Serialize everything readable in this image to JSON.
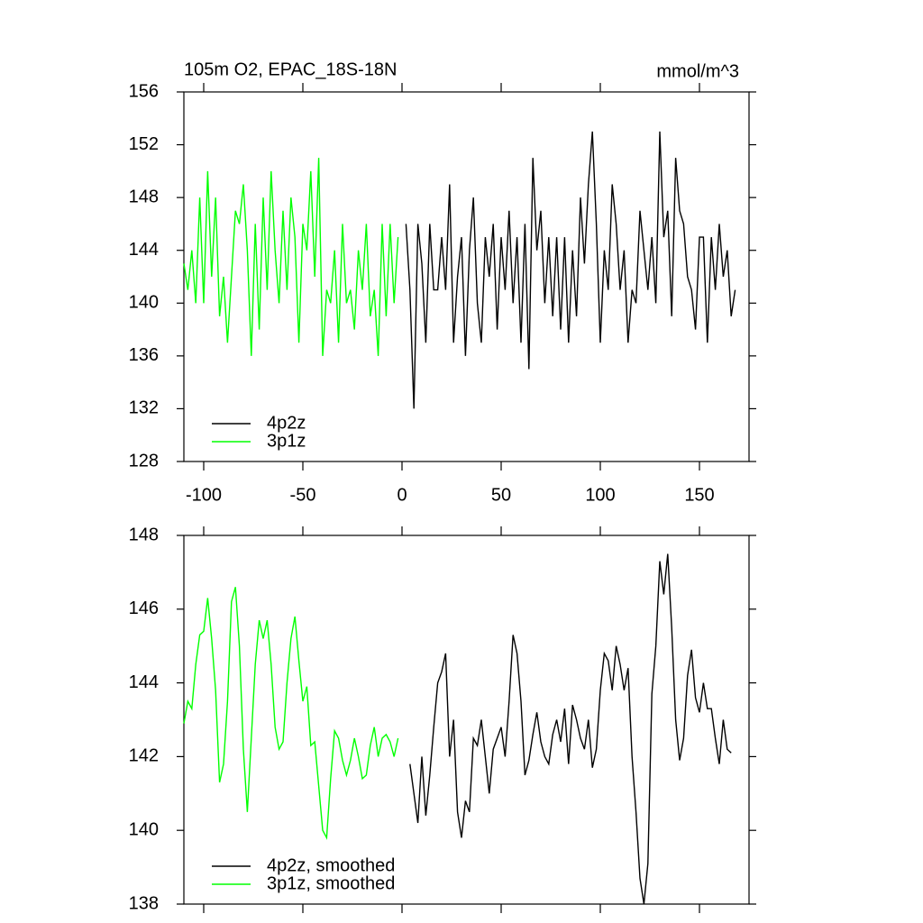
{
  "chart_data": [
    {
      "type": "line",
      "title": "105m O2, EPAC_18S-18N",
      "units": "mmol/m^3",
      "xlim": [
        -110,
        175
      ],
      "xticks": [
        -100,
        -50,
        0,
        50,
        100,
        150
      ],
      "ylim": [
        128,
        156
      ],
      "yticks": [
        128,
        132,
        136,
        140,
        144,
        148,
        152,
        156
      ],
      "legend": "lower left",
      "series": [
        {
          "name": "4p2z",
          "color": "#000000",
          "x": [
            2,
            4,
            6,
            8,
            10,
            12,
            14,
            16,
            18,
            20,
            22,
            24,
            26,
            28,
            30,
            32,
            34,
            36,
            38,
            40,
            42,
            44,
            46,
            48,
            50,
            52,
            54,
            56,
            58,
            60,
            62,
            64,
            66,
            68,
            70,
            72,
            74,
            76,
            78,
            80,
            82,
            84,
            86,
            88,
            90,
            92,
            94,
            96,
            98,
            100,
            102,
            104,
            106,
            108,
            110,
            112,
            114,
            116,
            118,
            120,
            122,
            124,
            126,
            128,
            130,
            132,
            134,
            136,
            138,
            140,
            142,
            144,
            146,
            148,
            150,
            152,
            154,
            156,
            158,
            160,
            162,
            164,
            166,
            168
          ],
          "values": [
            146,
            141,
            132,
            146,
            143,
            137,
            146,
            141,
            141,
            145,
            141,
            149,
            137,
            142,
            145,
            136,
            144,
            148,
            140,
            137,
            145,
            142,
            146,
            138,
            145,
            141,
            147,
            140,
            145,
            137,
            146,
            135,
            151,
            144,
            147,
            140,
            145,
            139,
            145,
            138,
            145,
            137,
            144,
            139,
            148,
            143,
            149,
            153,
            146,
            137,
            144,
            141,
            149,
            146,
            141,
            144,
            137,
            141,
            140,
            147,
            144,
            141,
            145,
            140,
            153,
            145,
            147,
            139,
            151,
            147,
            146,
            142,
            141,
            138,
            145,
            145,
            137,
            145,
            141,
            146,
            142,
            144,
            139,
            141
          ]
        },
        {
          "name": "3p1z",
          "color": "#00ff00",
          "x": [
            -110,
            -108,
            -106,
            -104,
            -102,
            -100,
            -98,
            -96,
            -94,
            -92,
            -90,
            -88,
            -86,
            -84,
            -82,
            -80,
            -78,
            -76,
            -74,
            -72,
            -70,
            -68,
            -66,
            -64,
            -62,
            -60,
            -58,
            -56,
            -54,
            -52,
            -50,
            -48,
            -46,
            -44,
            -42,
            -40,
            -38,
            -36,
            -34,
            -32,
            -30,
            -28,
            -26,
            -24,
            -22,
            -20,
            -18,
            -16,
            -14,
            -12,
            -10,
            -8,
            -6,
            -4,
            -2
          ],
          "values": [
            143,
            141,
            144,
            140,
            148,
            140,
            150,
            142,
            148,
            139,
            142,
            137,
            142,
            147,
            146,
            149,
            144,
            136,
            146,
            138,
            148,
            141,
            150,
            144,
            140,
            147,
            141,
            148,
            145,
            137,
            146,
            144,
            150,
            142,
            151,
            136,
            141,
            140,
            144,
            137,
            146,
            140,
            141,
            138,
            144,
            141,
            146,
            139,
            141,
            136,
            146,
            139,
            146,
            140,
            145
          ]
        }
      ]
    },
    {
      "type": "line",
      "xlim": [
        -110,
        175
      ],
      "ylim": [
        138,
        148
      ],
      "yticks": [
        138,
        140,
        142,
        144,
        146,
        148
      ],
      "legend": "lower left",
      "series": [
        {
          "name": "4p2z, smoothed",
          "color": "#000000",
          "x": [
            4,
            6,
            8,
            10,
            12,
            14,
            16,
            18,
            20,
            22,
            24,
            26,
            28,
            30,
            32,
            34,
            36,
            38,
            40,
            42,
            44,
            46,
            48,
            50,
            52,
            54,
            56,
            58,
            60,
            62,
            64,
            66,
            68,
            70,
            72,
            74,
            76,
            78,
            80,
            82,
            84,
            86,
            88,
            90,
            92,
            94,
            96,
            98,
            100,
            102,
            104,
            106,
            108,
            110,
            112,
            114,
            116,
            118,
            120,
            122,
            124,
            126,
            128,
            130,
            132,
            134,
            136,
            138,
            140,
            142,
            144,
            146,
            148,
            150,
            152,
            154,
            156,
            158,
            160,
            162,
            164,
            166
          ],
          "values": [
            141.8,
            141.0,
            140.2,
            142.0,
            140.4,
            141.5,
            142.8,
            144.0,
            144.3,
            144.8,
            142.0,
            143.0,
            140.5,
            139.8,
            140.8,
            140.5,
            142.5,
            142.3,
            143.0,
            142.0,
            141.0,
            142.2,
            142.5,
            142.8,
            142.0,
            143.5,
            145.3,
            144.8,
            143.5,
            141.5,
            141.9,
            142.6,
            143.2,
            142.4,
            142.0,
            141.8,
            142.6,
            143.0,
            142.4,
            143.3,
            141.8,
            143.4,
            143.0,
            142.5,
            142.2,
            143.0,
            141.7,
            142.2,
            143.8,
            144.8,
            144.6,
            143.8,
            145.0,
            144.5,
            143.8,
            144.4,
            142.0,
            140.5,
            138.7,
            138.0,
            139.1,
            143.7,
            145.0,
            147.3,
            146.4,
            147.5,
            145.5,
            143.0,
            141.9,
            142.5,
            144.2,
            144.9,
            143.6,
            143.2,
            144.0,
            143.3,
            143.3,
            142.5,
            141.8,
            143.0,
            142.2,
            142.1
          ]
        },
        {
          "name": "3p1z, smoothed",
          "color": "#00ff00",
          "x": [
            -110,
            -108,
            -106,
            -104,
            -102,
            -100,
            -98,
            -96,
            -94,
            -92,
            -90,
            -88,
            -86,
            -84,
            -82,
            -80,
            -78,
            -76,
            -74,
            -72,
            -70,
            -68,
            -66,
            -64,
            -62,
            -60,
            -58,
            -56,
            -54,
            -52,
            -50,
            -48,
            -46,
            -44,
            -42,
            -40,
            -38,
            -36,
            -34,
            -32,
            -30,
            -28,
            -26,
            -24,
            -22,
            -20,
            -18,
            -16,
            -14,
            -12,
            -10,
            -8,
            -6,
            -4,
            -2
          ],
          "values": [
            142.9,
            143.5,
            143.3,
            144.5,
            145.3,
            145.4,
            146.3,
            145.2,
            143.8,
            141.3,
            141.8,
            143.5,
            146.2,
            146.6,
            145.0,
            142.2,
            140.5,
            142.5,
            144.5,
            145.7,
            145.2,
            145.7,
            144.5,
            142.8,
            142.2,
            142.4,
            144.0,
            145.2,
            145.8,
            144.6,
            143.5,
            143.9,
            142.3,
            142.4,
            141.2,
            140.0,
            139.8,
            141.4,
            142.7,
            142.5,
            141.9,
            141.5,
            141.9,
            142.5,
            142.0,
            141.4,
            141.5,
            142.3,
            142.8,
            142.0,
            142.5,
            142.6,
            142.4,
            142.0,
            142.5
          ]
        }
      ]
    }
  ]
}
